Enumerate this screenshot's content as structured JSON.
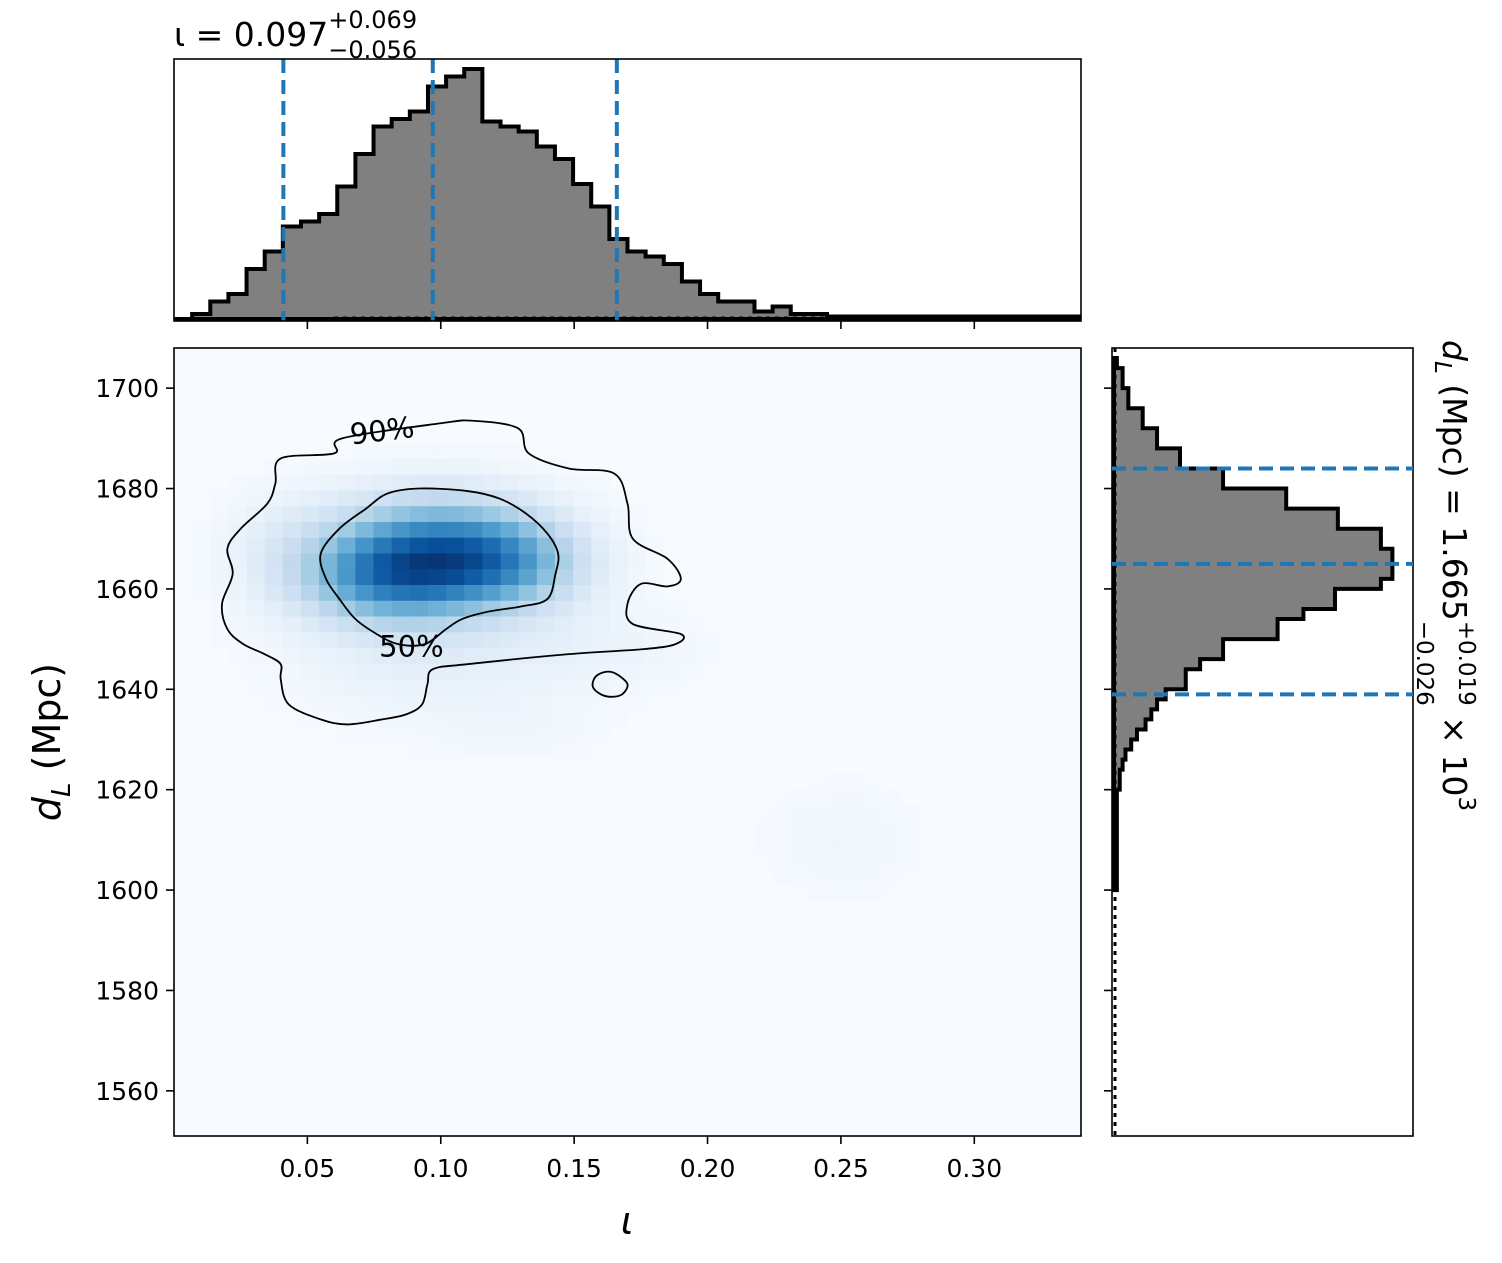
{
  "chart_data": [
    {
      "type": "histogram",
      "panel": "top-marginal",
      "parameter": "ι",
      "title": {
        "prefix": "ι = 0.097",
        "sup": "+0.069",
        "sub": "−0.056"
      },
      "xlim": [
        0.0,
        0.34
      ],
      "xticks": [
        0.05,
        0.1,
        0.15,
        0.2,
        0.25,
        0.3
      ],
      "bin_edges": [
        0.0,
        0.0068,
        0.0136,
        0.0204,
        0.0272,
        0.034,
        0.0408,
        0.0476,
        0.0544,
        0.0612,
        0.068,
        0.0748,
        0.0816,
        0.0884,
        0.0952,
        0.102,
        0.1088,
        0.1156,
        0.1224,
        0.1292,
        0.136,
        0.1428,
        0.1496,
        0.1564,
        0.1632,
        0.17,
        0.1768,
        0.1836,
        0.1904,
        0.1972,
        0.204,
        0.2108,
        0.2176,
        0.2244,
        0.2312,
        0.238,
        0.2448,
        0.2516,
        0.2584,
        0.2652,
        0.272,
        0.2788,
        0.2856,
        0.2924,
        0.2992,
        0.306,
        0.3128,
        0.3196,
        0.3264,
        0.3332,
        0.34
      ],
      "counts": [
        0.0,
        0.02,
        0.07,
        0.1,
        0.2,
        0.27,
        0.37,
        0.39,
        0.42,
        0.53,
        0.66,
        0.77,
        0.8,
        0.83,
        0.93,
        0.97,
        1.0,
        0.79,
        0.77,
        0.75,
        0.69,
        0.64,
        0.54,
        0.45,
        0.32,
        0.27,
        0.25,
        0.22,
        0.15,
        0.1,
        0.07,
        0.07,
        0.03,
        0.05,
        0.02,
        0.02,
        0.01,
        0.01,
        0.01,
        0.01,
        0.01,
        0.01,
        0.01,
        0.01,
        0.01,
        0.01,
        0.01,
        0.01,
        0.01,
        0.01
      ],
      "quantile_lines": [
        0.041,
        0.097,
        0.166
      ],
      "line_style": "dashed",
      "fill_color": "#808080",
      "edge_color": "#000000",
      "quantile_color": "#1f77b4"
    },
    {
      "type": "heatmap",
      "panel": "joint-2d",
      "xlabel": "ι",
      "ylabel": "d_L (Mpc)",
      "ylabel_parts": {
        "main": "d",
        "sub": "L",
        "rest": " (Mpc)"
      },
      "xlim": [
        0.0,
        0.34
      ],
      "ylim": [
        1551,
        1708
      ],
      "xticks": [
        0.05,
        0.1,
        0.15,
        0.2,
        0.25,
        0.3
      ],
      "yticks": [
        1560,
        1580,
        1600,
        1620,
        1640,
        1660,
        1680,
        1700
      ],
      "xtick_labels": [
        "0.05",
        "0.10",
        "0.15",
        "0.20",
        "0.25",
        "0.30"
      ],
      "ytick_labels": [
        "1560",
        "1580",
        "1600",
        "1620",
        "1640",
        "1660",
        "1680",
        "1700"
      ],
      "colormap": "Blues",
      "density_peaks": [
        {
          "x": 0.098,
          "y": 1668,
          "sx": 0.028,
          "sy": 7.5,
          "w": 1.0
        },
        {
          "x": 0.08,
          "y": 1662,
          "sx": 0.022,
          "sy": 6.0,
          "w": 0.7
        },
        {
          "x": 0.125,
          "y": 1665,
          "sx": 0.02,
          "sy": 6.0,
          "w": 0.55
        },
        {
          "x": 0.095,
          "y": 1650,
          "sx": 0.035,
          "sy": 10.0,
          "w": 0.18
        },
        {
          "x": 0.04,
          "y": 1668,
          "sx": 0.015,
          "sy": 8.0,
          "w": 0.12
        },
        {
          "x": 0.16,
          "y": 1648,
          "sx": 0.025,
          "sy": 6.0,
          "w": 0.08
        },
        {
          "x": 0.13,
          "y": 1632,
          "sx": 0.02,
          "sy": 4.0,
          "w": 0.05
        },
        {
          "x": 0.25,
          "y": 1610,
          "sx": 0.02,
          "sy": 8.0,
          "w": 0.06
        }
      ],
      "contours": [
        {
          "level": "90%",
          "label": "90%",
          "label_at": [
            0.078,
            1691.5
          ],
          "points": [
            [
              0.035,
              1677
            ],
            [
              0.038,
              1681
            ],
            [
              0.04,
              1686
            ],
            [
              0.06,
              1687
            ],
            [
              0.063,
              1690
            ],
            [
              0.1,
              1693
            ],
            [
              0.112,
              1693.5
            ],
            [
              0.129,
              1692
            ],
            [
              0.133,
              1687
            ],
            [
              0.148,
              1684
            ],
            [
              0.165,
              1683
            ],
            [
              0.17,
              1677
            ],
            [
              0.172,
              1670
            ],
            [
              0.185,
              1666
            ],
            [
              0.19,
              1662
            ],
            [
              0.185,
              1660.5
            ],
            [
              0.175,
              1661
            ],
            [
              0.17,
              1657
            ],
            [
              0.172,
              1653
            ],
            [
              0.19,
              1651
            ],
            [
              0.188,
              1649
            ],
            [
              0.176,
              1648
            ],
            [
              0.148,
              1647
            ],
            [
              0.11,
              1645
            ],
            [
              0.097,
              1644
            ],
            [
              0.095,
              1641
            ],
            [
              0.093,
              1637
            ],
            [
              0.087,
              1635
            ],
            [
              0.078,
              1634
            ],
            [
              0.065,
              1633
            ],
            [
              0.055,
              1634
            ],
            [
              0.043,
              1637
            ],
            [
              0.04,
              1642
            ],
            [
              0.04,
              1645
            ],
            [
              0.034,
              1647
            ],
            [
              0.026,
              1649
            ],
            [
              0.02,
              1652
            ],
            [
              0.018,
              1657
            ],
            [
              0.022,
              1663
            ],
            [
              0.02,
              1668
            ],
            [
              0.025,
              1672
            ]
          ]
        },
        {
          "level": "50%",
          "label": "50%",
          "label_at": [
            0.089,
            1648.5
          ],
          "points": [
            [
              0.055,
              1667
            ],
            [
              0.062,
              1672
            ],
            [
              0.072,
              1676
            ],
            [
              0.08,
              1679
            ],
            [
              0.092,
              1680
            ],
            [
              0.11,
              1679.5
            ],
            [
              0.122,
              1678
            ],
            [
              0.132,
              1675
            ],
            [
              0.14,
              1671
            ],
            [
              0.144,
              1667
            ],
            [
              0.143,
              1663
            ],
            [
              0.14,
              1658
            ],
            [
              0.13,
              1656.5
            ],
            [
              0.118,
              1655.5
            ],
            [
              0.108,
              1654
            ],
            [
              0.102,
              1652
            ],
            [
              0.094,
              1649
            ],
            [
              0.084,
              1649
            ],
            [
              0.076,
              1651
            ],
            [
              0.068,
              1654
            ],
            [
              0.062,
              1658
            ],
            [
              0.057,
              1662
            ]
          ]
        },
        {
          "level": "90%",
          "label": "",
          "points": [
            [
              0.157,
              1640.5
            ],
            [
              0.158,
              1642.5
            ],
            [
              0.162,
              1643.5
            ],
            [
              0.166,
              1643
            ],
            [
              0.17,
              1641
            ],
            [
              0.168,
              1639
            ],
            [
              0.164,
              1638.5
            ],
            [
              0.16,
              1639
            ]
          ]
        }
      ]
    },
    {
      "type": "histogram",
      "panel": "right-marginal",
      "orientation": "horizontal",
      "parameter": "d_L (Mpc)",
      "title_parts": {
        "main": "d",
        "sub": "L",
        "rest": " (Mpc) = 1.665",
        "sup": "+0.019",
        "subscr": "−0.026",
        "tail": " × 10",
        "exp": "3"
      },
      "ylim": [
        1551,
        1708
      ],
      "bin_edges": [
        1600,
        1602,
        1604,
        1606,
        1608,
        1610,
        1612,
        1614,
        1616,
        1618,
        1620,
        1622,
        1624,
        1626,
        1628,
        1630,
        1632,
        1634,
        1636,
        1638,
        1640,
        1642,
        1644,
        1646,
        1648,
        1650,
        1652,
        1654,
        1656,
        1658,
        1660,
        1662,
        1664,
        1666,
        1668,
        1670,
        1672,
        1674,
        1676,
        1678,
        1680,
        1682,
        1684,
        1686,
        1688,
        1690,
        1692,
        1694,
        1696,
        1698,
        1700,
        1702,
        1704,
        1706
      ],
      "counts": [
        0.01,
        0.01,
        0.01,
        0.01,
        0.01,
        0.01,
        0.01,
        0.01,
        0.01,
        0.01,
        0.02,
        0.02,
        0.03,
        0.04,
        0.06,
        0.08,
        0.11,
        0.13,
        0.15,
        0.18,
        0.25,
        0.25,
        0.3,
        0.38,
        0.38,
        0.57,
        0.57,
        0.66,
        0.77,
        0.77,
        0.93,
        0.97,
        0.97,
        0.97,
        0.93,
        0.93,
        0.78,
        0.78,
        0.6,
        0.6,
        0.38,
        0.38,
        0.23,
        0.23,
        0.15,
        0.15,
        0.1,
        0.1,
        0.05,
        0.05,
        0.03,
        0.03,
        0.01
      ],
      "quantile_lines": [
        1639,
        1665,
        1684
      ],
      "line_style": "dashed",
      "fill_color": "#808080",
      "edge_color": "#000000",
      "quantile_color": "#1f77b4"
    }
  ]
}
